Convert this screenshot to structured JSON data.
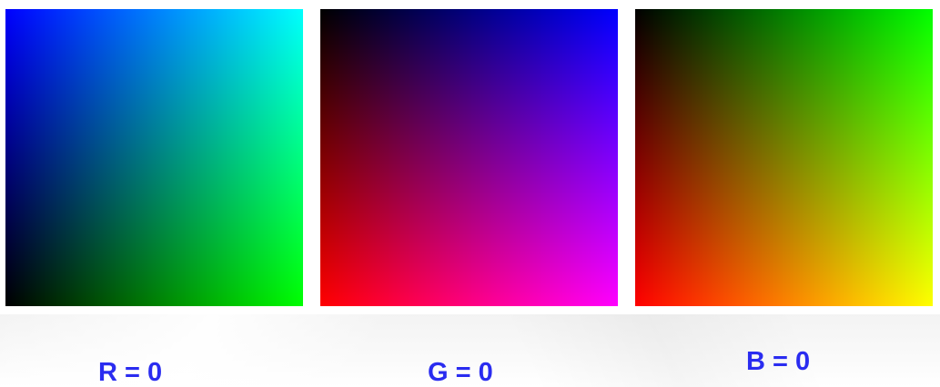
{
  "panels": [
    {
      "label": "R = 0",
      "fixed_channel": "R",
      "colors": {
        "x_axis": "#00ff00",
        "y_axis": "#0000ff"
      }
    },
    {
      "label": "G = 0",
      "fixed_channel": "G",
      "colors": {
        "x_axis": "#0000ff",
        "y_axis": "#ff0000"
      }
    },
    {
      "label": "B = 0",
      "fixed_channel": "B",
      "colors": {
        "x_axis": "#00ff00",
        "y_axis": "#ff0000"
      }
    }
  ],
  "colors": {
    "label_text": "#2a2cf0",
    "background": "#ffffff"
  }
}
